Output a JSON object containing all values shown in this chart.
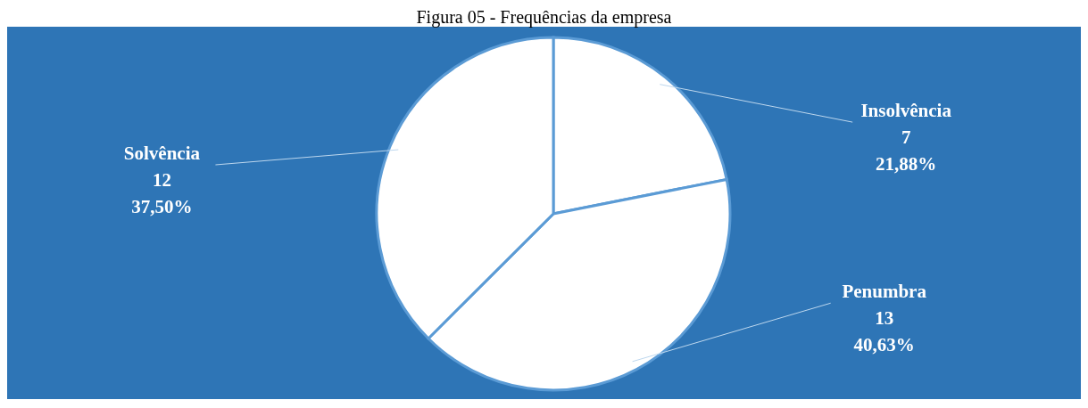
{
  "chart_data": {
    "type": "pie",
    "title": "Figura 05 - Frequências da empresa",
    "categories": [
      "Insolvência",
      "Penumbra",
      "Solvência"
    ],
    "values": [
      21.88,
      40.63,
      37.5
    ],
    "colors": [
      "#ffffff",
      "#ffffff",
      "#ffffff"
    ],
    "value_labels": [
      "7\n21,88%",
      "13\n40,63%",
      "12\n37,50%"
    ],
    "legend": false
  }
}
